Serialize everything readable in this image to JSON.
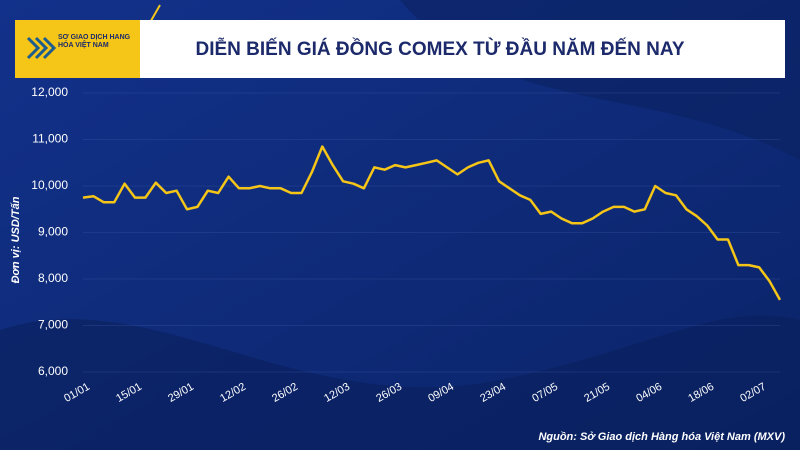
{
  "header": {
    "logo": "SỞ GIAO DỊCH HÀNG HÓA VIỆT NAM"
  },
  "chart_data": {
    "type": "line",
    "title": "DIỄN BIẾN GIÁ ĐỒNG COMEX TỪ ĐẦU NĂM ĐẾN NAY",
    "y_label": "Đơn vị: USD/Tấn",
    "source": "Nguồn: Sở Giao dịch Hàng hóa Việt Nam (MXV)",
    "categories": [
      "01/01",
      null,
      null,
      null,
      null,
      "15/01",
      null,
      null,
      null,
      null,
      "29/01",
      null,
      null,
      null,
      null,
      "12/02",
      null,
      null,
      null,
      null,
      "26/02",
      null,
      null,
      null,
      null,
      "12/03",
      null,
      null,
      null,
      null,
      "26/03",
      null,
      null,
      null,
      null,
      "09/04",
      null,
      null,
      null,
      null,
      "23/04",
      null,
      null,
      null,
      null,
      "07/05",
      null,
      null,
      null,
      null,
      "21/05",
      null,
      null,
      null,
      null,
      "04/06",
      null,
      null,
      null,
      null,
      "18/06",
      null,
      null,
      null,
      null,
      "02/07",
      null,
      null
    ],
    "values": [
      9750,
      9780,
      9650,
      9650,
      10050,
      9750,
      9750,
      10070,
      9850,
      9900,
      9500,
      9550,
      9900,
      9850,
      10200,
      9950,
      9950,
      10000,
      9950,
      9950,
      9850,
      9850,
      10300,
      10850,
      10450,
      10100,
      10050,
      9950,
      10400,
      10350,
      10450,
      10400,
      10450,
      10500,
      10550,
      10400,
      10250,
      10400,
      10500,
      10550,
      10100,
      9950,
      9800,
      9700,
      9400,
      9450,
      9300,
      9200,
      9200,
      9300,
      9450,
      9550,
      9550,
      9450,
      9500,
      10000,
      9850,
      9800,
      9500,
      9350,
      9150,
      8850,
      8850,
      8300,
      8300,
      8250,
      7950,
      7550
    ],
    "color": "#f5c518",
    "ylim": [
      6000,
      12000
    ],
    "yticks": [
      {
        "value": 6000,
        "label": "6,000"
      },
      {
        "value": 7000,
        "label": "7,000"
      },
      {
        "value": 8000,
        "label": "8,000"
      },
      {
        "value": 9000,
        "label": "9,000"
      },
      {
        "value": 10000,
        "label": "10,000"
      },
      {
        "value": 11000,
        "label": "11,000"
      },
      {
        "value": 12000,
        "label": "12,000"
      }
    ],
    "grid": true
  }
}
